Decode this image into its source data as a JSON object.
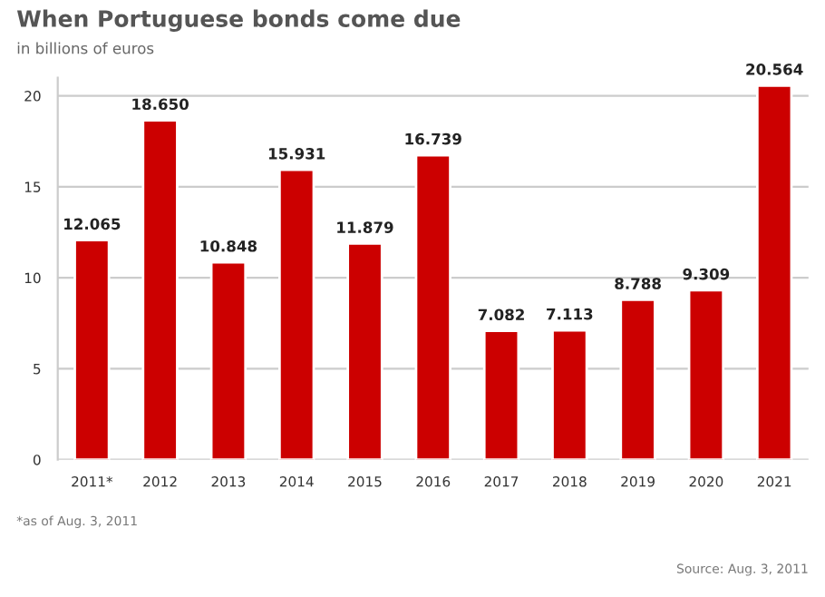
{
  "chart_data": {
    "type": "bar",
    "title": "When Portuguese bonds come due",
    "subtitle": "in billions of euros",
    "categories": [
      "2011*",
      "2012",
      "2013",
      "2014",
      "2015",
      "2016",
      "2017",
      "2018",
      "2019",
      "2020",
      "2021"
    ],
    "values": [
      12.065,
      18.65,
      10.848,
      15.931,
      11.879,
      16.739,
      7.082,
      7.113,
      8.788,
      9.309,
      20.564
    ],
    "value_labels": [
      "12.065",
      "18.650",
      "10.848",
      "15.931",
      "11.879",
      "16.739",
      "7.082",
      "7.113",
      "8.788",
      "9.309",
      "20.564"
    ],
    "color": "#cc0000",
    "ylim": [
      0,
      21
    ],
    "yticks": [
      0,
      5,
      10,
      15,
      20
    ],
    "grid": "y",
    "annotations": [
      "*as of Aug. 3, 2011",
      "Source: Aug. 3, 2011"
    ]
  }
}
